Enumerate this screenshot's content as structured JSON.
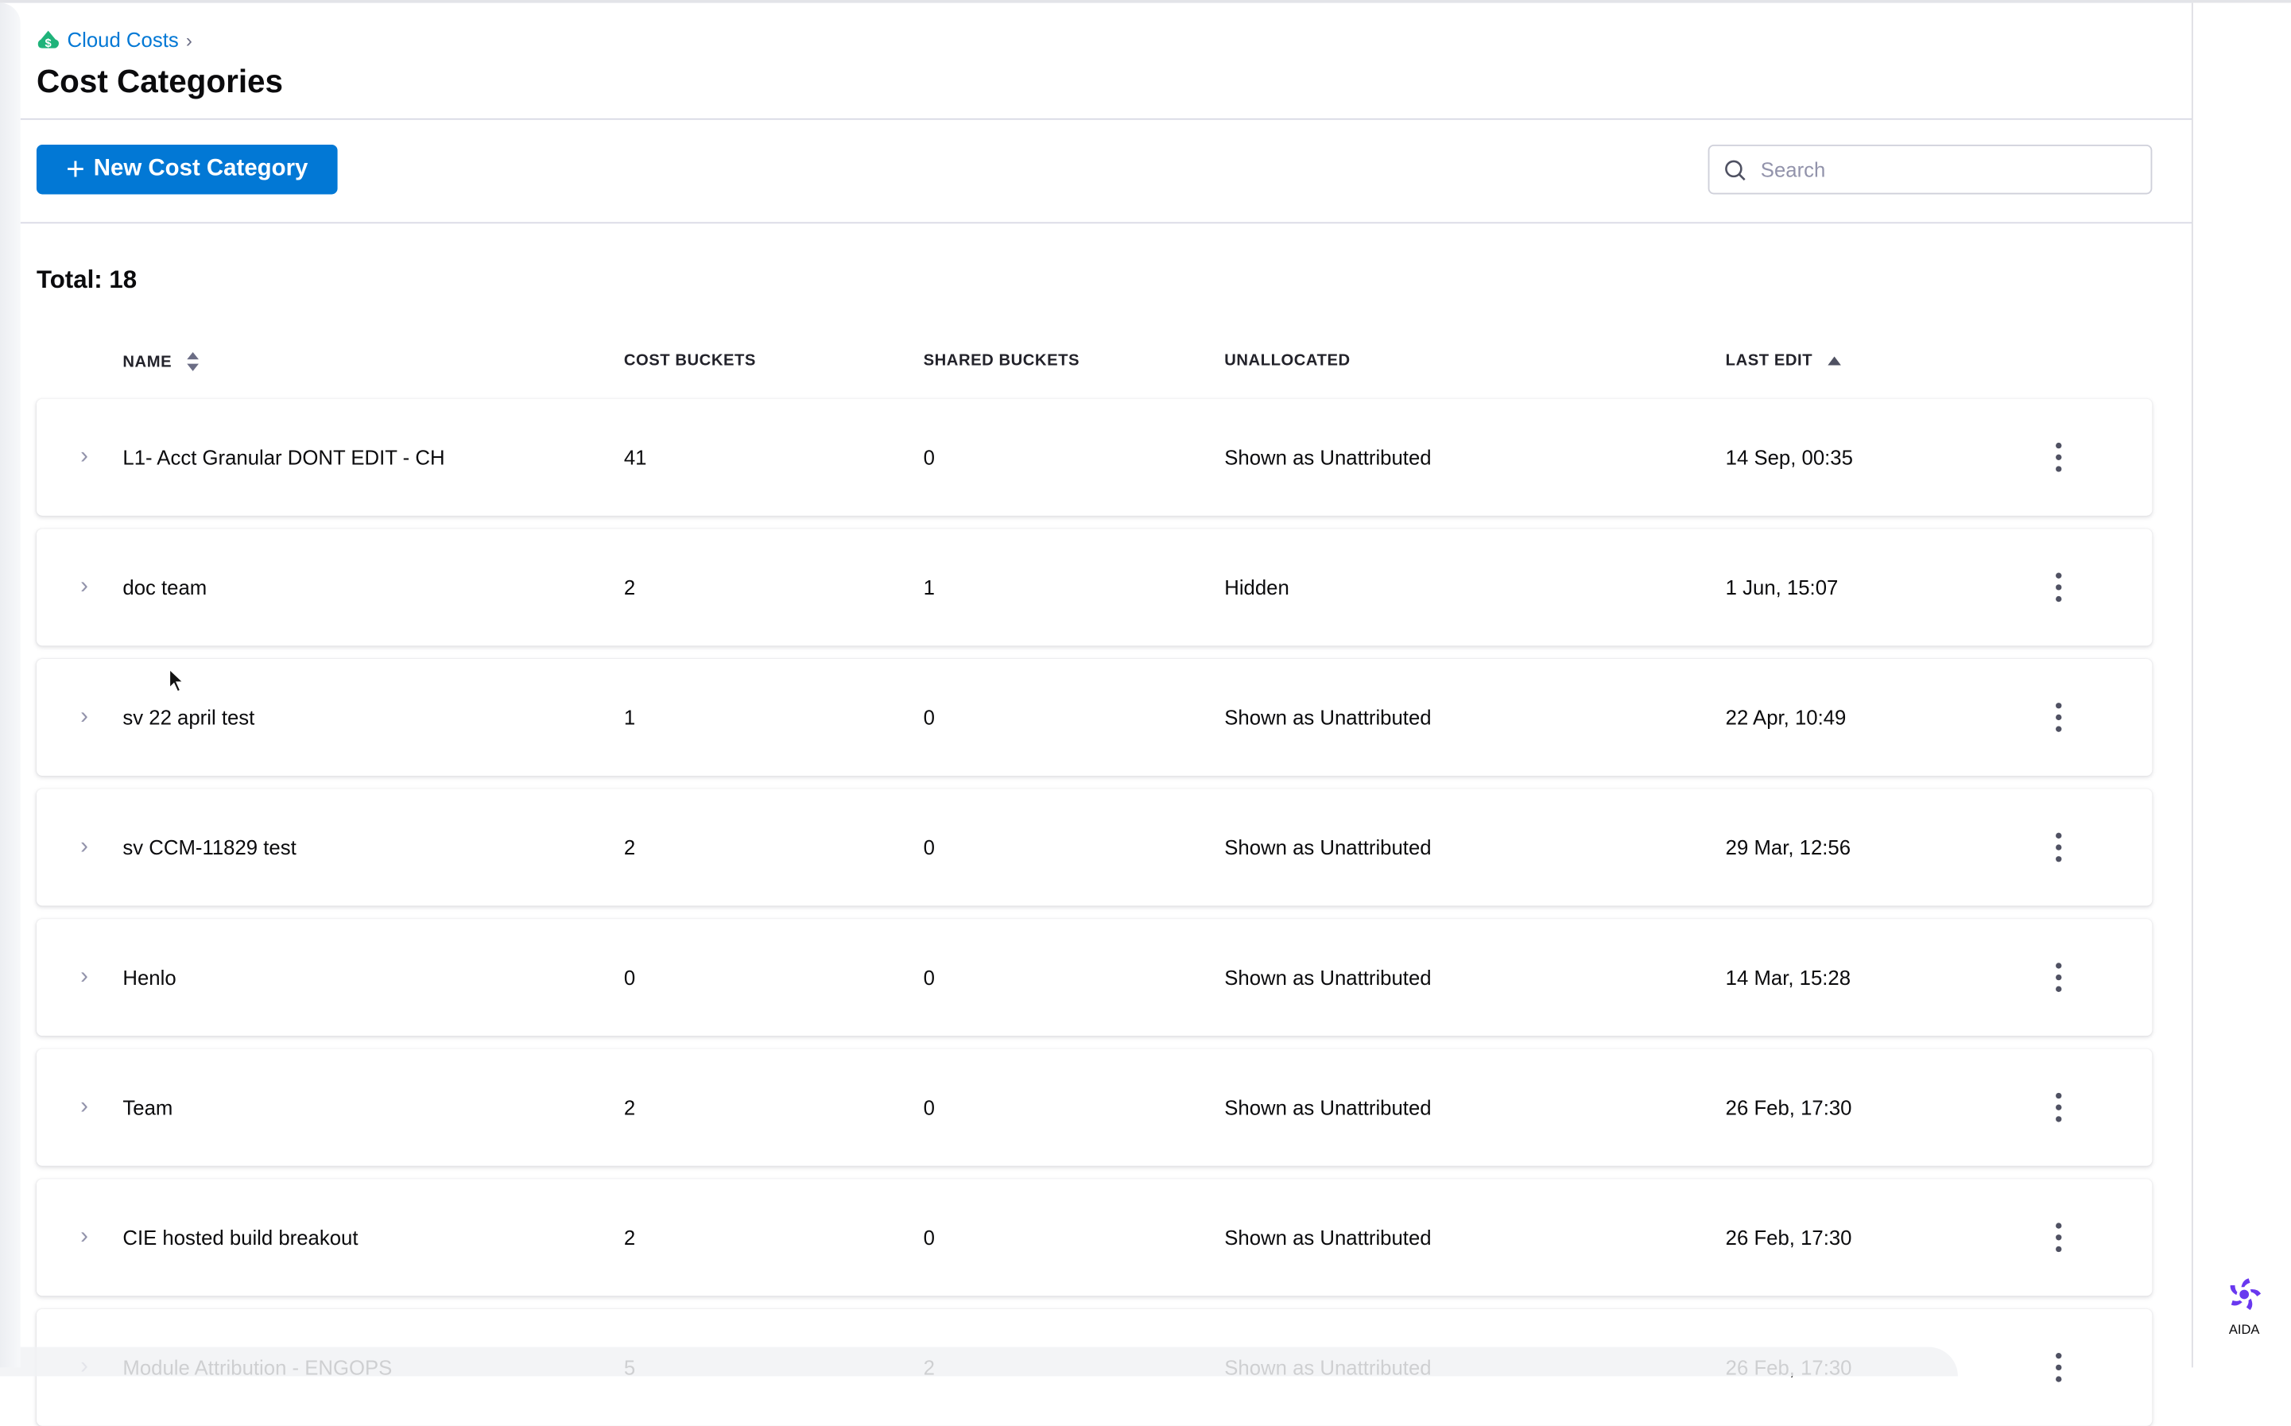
{
  "breadcrumb": {
    "label": "Cloud Costs"
  },
  "page": {
    "title": "Cost Categories"
  },
  "toolbar": {
    "new_label": "New Cost Category",
    "search_placeholder": "Search",
    "search_value": ""
  },
  "total": "Total: 18",
  "table": {
    "headers": {
      "name": "NAME",
      "cost_buckets": "COST BUCKETS",
      "shared_buckets": "SHARED BUCKETS",
      "unallocated": "UNALLOCATED",
      "last_edit": "LAST EDIT"
    },
    "rows": [
      {
        "name": "L1- Acct Granular DONT EDIT - CH",
        "cost_buckets": "41",
        "shared_buckets": "0",
        "unallocated": "Shown as Unattributed",
        "last_edit": "14 Sep, 00:35"
      },
      {
        "name": "doc team",
        "cost_buckets": "2",
        "shared_buckets": "1",
        "unallocated": "Hidden",
        "last_edit": "1 Jun, 15:07"
      },
      {
        "name": "sv 22 april test",
        "cost_buckets": "1",
        "shared_buckets": "0",
        "unallocated": "Shown as Unattributed",
        "last_edit": "22 Apr, 10:49"
      },
      {
        "name": "sv CCM-11829 test",
        "cost_buckets": "2",
        "shared_buckets": "0",
        "unallocated": "Shown as Unattributed",
        "last_edit": "29 Mar, 12:56"
      },
      {
        "name": "Henlo",
        "cost_buckets": "0",
        "shared_buckets": "0",
        "unallocated": "Shown as Unattributed",
        "last_edit": "14 Mar, 15:28"
      },
      {
        "name": "Team",
        "cost_buckets": "2",
        "shared_buckets": "0",
        "unallocated": "Shown as Unattributed",
        "last_edit": "26 Feb, 17:30"
      },
      {
        "name": "CIE hosted build breakout",
        "cost_buckets": "2",
        "shared_buckets": "0",
        "unallocated": "Shown as Unattributed",
        "last_edit": "26 Feb, 17:30"
      },
      {
        "name": "Module Attribution - ENGOPS",
        "cost_buckets": "5",
        "shared_buckets": "2",
        "unallocated": "Shown as Unattributed",
        "last_edit": "26 Feb, 17:30"
      }
    ]
  },
  "aida": {
    "label": "AIDA"
  },
  "colors": {
    "primary": "#0278d5",
    "aida": "#6938ef",
    "cloud_icon": "#1fb37a"
  }
}
